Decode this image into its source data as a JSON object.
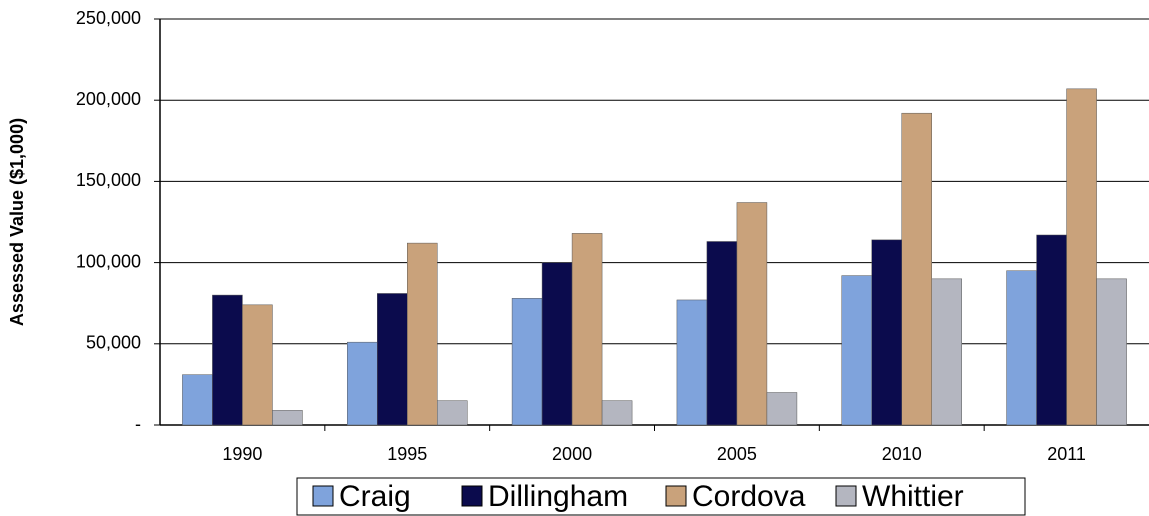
{
  "chart_data": {
    "type": "bar",
    "y_label": "Assessed Value ($1,000)",
    "categories": [
      "1990",
      "1995",
      "2000",
      "2005",
      "2010",
      "2011"
    ],
    "series": [
      {
        "name": "Craig",
        "color": "#7fa3dc",
        "values": [
          31000,
          51000,
          78000,
          77000,
          92000,
          95000
        ]
      },
      {
        "name": "Dillingham",
        "color": "#0b0b4d",
        "values": [
          80000,
          81000,
          100000,
          113000,
          114000,
          117000
        ]
      },
      {
        "name": "Cordova",
        "color": "#c9a27b",
        "values": [
          74000,
          112000,
          118000,
          137000,
          192000,
          207000
        ]
      },
      {
        "name": "Whittier",
        "color": "#b4b6c0",
        "values": [
          9000,
          15000,
          15000,
          20000,
          90000,
          90000
        ]
      }
    ],
    "ylim": [
      0,
      250000
    ],
    "yticks": [
      {
        "value": 0,
        "label": "-"
      },
      {
        "value": 50000,
        "label": "50,000"
      },
      {
        "value": 100000,
        "label": "100,000"
      },
      {
        "value": 150000,
        "label": "150,000"
      },
      {
        "value": 200000,
        "label": "200,000"
      },
      {
        "value": 250000,
        "label": "250,000"
      }
    ],
    "grid": true,
    "legend": "bottom"
  }
}
